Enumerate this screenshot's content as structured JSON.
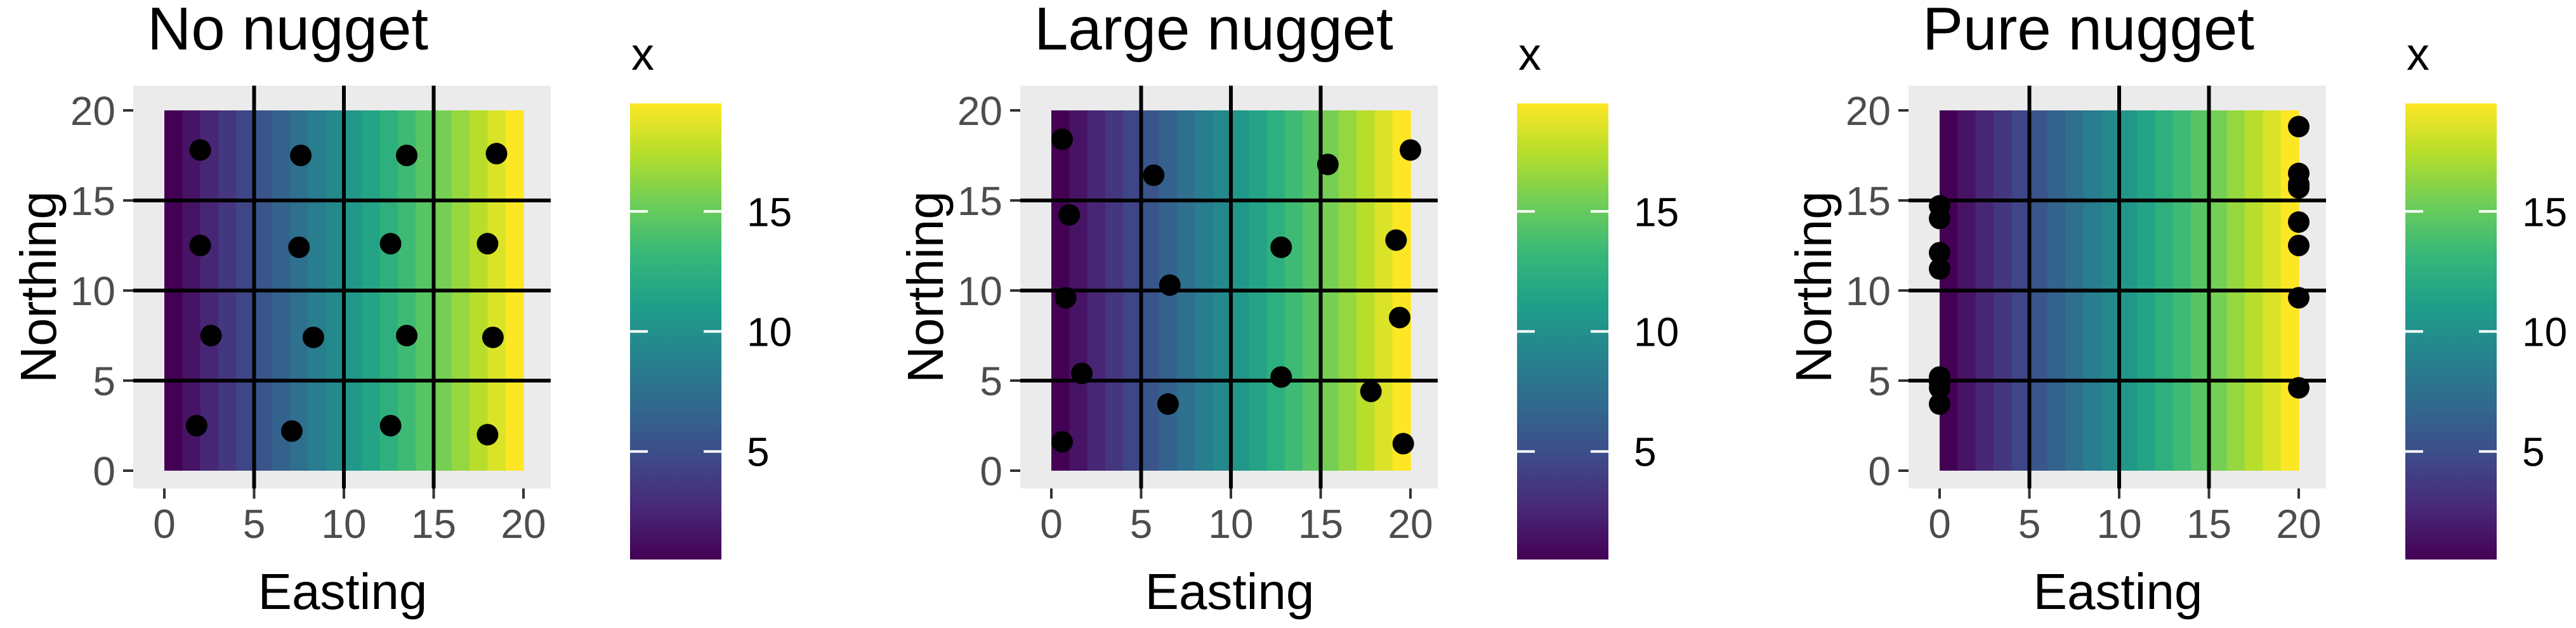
{
  "colors": {
    "panel_background": "#ebebeb",
    "gridline": "#000000",
    "point": "#000000",
    "viridis": [
      "#440154",
      "#482878",
      "#3e4a89",
      "#31688e",
      "#26828e",
      "#1f9e89",
      "#35b779",
      "#6dcd59",
      "#b4de2c",
      "#fde725"
    ]
  },
  "chart_data": [
    {
      "type": "scatter",
      "title": "No nugget",
      "xlabel": "Easting",
      "ylabel": "Northing",
      "xlim": [
        0,
        20
      ],
      "ylim": [
        0,
        20
      ],
      "x_ticks": [
        "0",
        "5",
        "10",
        "15",
        "20"
      ],
      "y_ticks": [
        "0",
        "5",
        "10",
        "15",
        "20"
      ],
      "grid": true,
      "fill": {
        "variable": "x",
        "range": [
          0.5,
          19.5
        ],
        "direction": "easting"
      },
      "legend": {
        "title": "x",
        "placement": "right",
        "labels": [
          "5",
          "10",
          "15"
        ],
        "values": [
          5,
          10,
          15
        ],
        "range": [
          0.5,
          19.5
        ]
      },
      "points": [
        {
          "x": 2.0,
          "y": 17.8
        },
        {
          "x": 7.6,
          "y": 17.5
        },
        {
          "x": 13.5,
          "y": 17.5
        },
        {
          "x": 18.5,
          "y": 17.6
        },
        {
          "x": 2.0,
          "y": 12.5
        },
        {
          "x": 7.5,
          "y": 12.4
        },
        {
          "x": 12.6,
          "y": 12.6
        },
        {
          "x": 18.0,
          "y": 12.6
        },
        {
          "x": 2.6,
          "y": 7.5
        },
        {
          "x": 8.3,
          "y": 7.4
        },
        {
          "x": 13.5,
          "y": 7.5
        },
        {
          "x": 18.3,
          "y": 7.4
        },
        {
          "x": 1.8,
          "y": 2.5
        },
        {
          "x": 7.1,
          "y": 2.2
        },
        {
          "x": 12.6,
          "y": 2.5
        },
        {
          "x": 18.0,
          "y": 2.0
        }
      ]
    },
    {
      "type": "scatter",
      "title": "Large nugget",
      "xlabel": "Easting",
      "ylabel": "Northing",
      "xlim": [
        0,
        20
      ],
      "ylim": [
        0,
        20
      ],
      "x_ticks": [
        "0",
        "5",
        "10",
        "15",
        "20"
      ],
      "y_ticks": [
        "0",
        "5",
        "10",
        "15",
        "20"
      ],
      "grid": true,
      "fill": {
        "variable": "x",
        "range": [
          0.5,
          19.5
        ],
        "direction": "easting"
      },
      "legend": {
        "title": "x",
        "placement": "right",
        "labels": [
          "5",
          "10",
          "15"
        ],
        "values": [
          5,
          10,
          15
        ],
        "range": [
          0.5,
          19.5
        ]
      },
      "points": [
        {
          "x": 0.6,
          "y": 18.4
        },
        {
          "x": 5.7,
          "y": 16.4
        },
        {
          "x": 15.4,
          "y": 17.0
        },
        {
          "x": 20.0,
          "y": 17.8
        },
        {
          "x": 1.0,
          "y": 14.2
        },
        {
          "x": 12.8,
          "y": 12.4
        },
        {
          "x": 19.2,
          "y": 12.8
        },
        {
          "x": 0.8,
          "y": 9.6
        },
        {
          "x": 6.6,
          "y": 10.3
        },
        {
          "x": 19.4,
          "y": 8.5
        },
        {
          "x": 1.7,
          "y": 5.4
        },
        {
          "x": 6.5,
          "y": 3.7
        },
        {
          "x": 12.8,
          "y": 5.2
        },
        {
          "x": 17.8,
          "y": 4.4
        },
        {
          "x": 0.6,
          "y": 1.6
        },
        {
          "x": 19.6,
          "y": 1.5
        }
      ]
    },
    {
      "type": "scatter",
      "title": "Pure nugget",
      "xlabel": "Easting",
      "ylabel": "Northing",
      "xlim": [
        0,
        20
      ],
      "ylim": [
        0,
        20
      ],
      "x_ticks": [
        "0",
        "5",
        "10",
        "15",
        "20"
      ],
      "y_ticks": [
        "0",
        "5",
        "10",
        "15",
        "20"
      ],
      "grid": true,
      "fill": {
        "variable": "x",
        "range": [
          0.5,
          19.5
        ],
        "direction": "easting"
      },
      "legend": {
        "title": "x",
        "placement": "right",
        "labels": [
          "5",
          "10",
          "15"
        ],
        "values": [
          5,
          10,
          15
        ],
        "range": [
          0.5,
          19.5
        ]
      },
      "points": [
        {
          "x": 0.0,
          "y": 14.7
        },
        {
          "x": 0.0,
          "y": 14.0
        },
        {
          "x": 0.0,
          "y": 12.1
        },
        {
          "x": 0.0,
          "y": 11.2
        },
        {
          "x": 0.0,
          "y": 5.2
        },
        {
          "x": 0.0,
          "y": 4.6
        },
        {
          "x": 0.0,
          "y": 3.7
        },
        {
          "x": 0.0,
          "y": 4.9
        },
        {
          "x": 20.0,
          "y": 19.1
        },
        {
          "x": 20.0,
          "y": 16.5
        },
        {
          "x": 20.0,
          "y": 15.7
        },
        {
          "x": 20.0,
          "y": 13.8
        },
        {
          "x": 20.0,
          "y": 12.5
        },
        {
          "x": 20.0,
          "y": 9.6
        },
        {
          "x": 20.0,
          "y": 4.6
        },
        {
          "x": 20.0,
          "y": 15.9
        }
      ]
    }
  ]
}
